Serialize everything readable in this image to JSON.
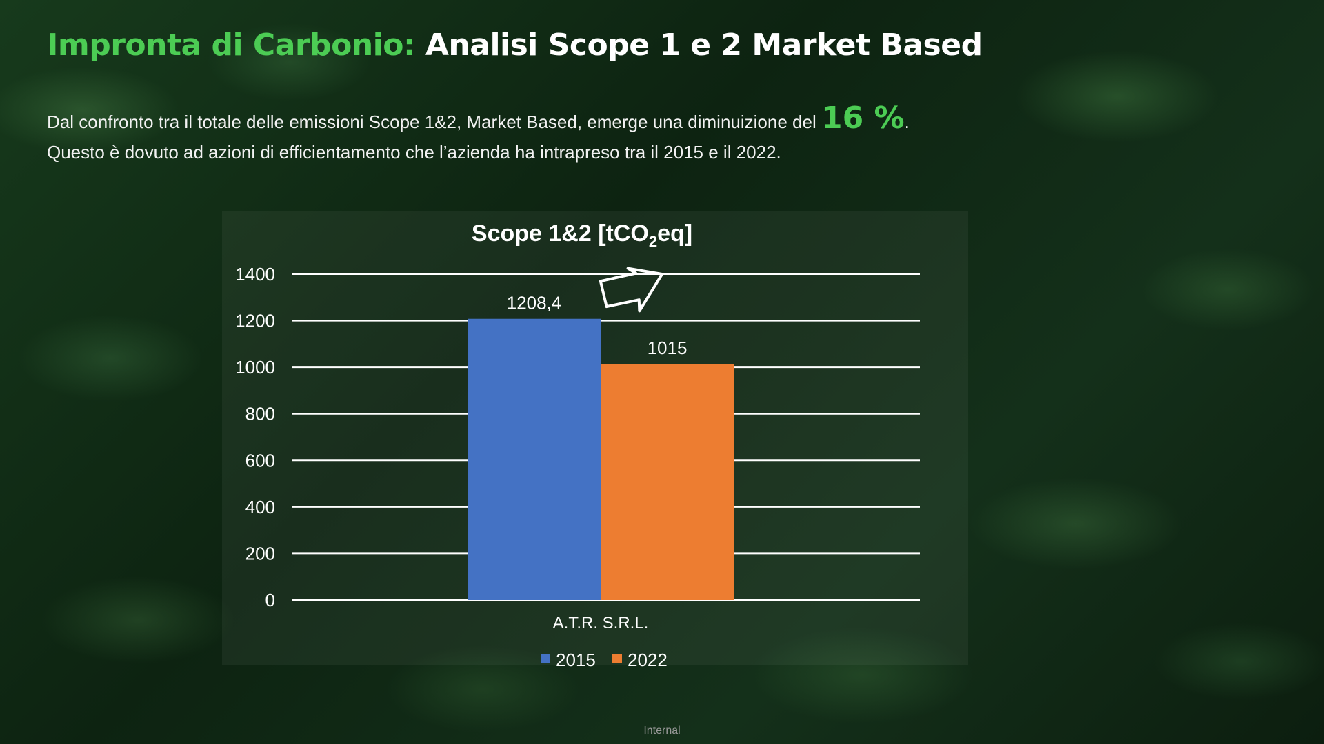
{
  "header": {
    "title_highlight": "Impronta di Carbonio:",
    "title_main": "Analisi Scope 1 e 2 Market Based"
  },
  "description": {
    "line1_before": "Dal confronto tra il totale delle emissioni Scope 1&2, Market Based, emerge una diminuizione del ",
    "percentage": "16 %",
    "line1_after": ".",
    "line2": "Questo è dovuto ad azioni di efficientamento che l’azienda ha intrapreso tra il 2015 e il 2022."
  },
  "chart_data": {
    "type": "bar",
    "title_prefix": "Scope 1&2 [tCO",
    "title_subscript": "2",
    "title_suffix": "eq]",
    "categories": [
      "A.T.R. S.R.L."
    ],
    "series": [
      {
        "name": "2015",
        "values": [
          1208.4
        ],
        "label": "1208,4",
        "color": "#4472c4"
      },
      {
        "name": "2022",
        "values": [
          1015
        ],
        "label": "1015",
        "color": "#ed7d31"
      }
    ],
    "yticks": [
      0,
      200,
      400,
      600,
      800,
      1000,
      1200,
      1400
    ],
    "ylim": [
      0,
      1400
    ],
    "grid": true,
    "legend": "bottom",
    "trend_arrow": "down-right"
  },
  "footer": {
    "label": "Internal"
  }
}
